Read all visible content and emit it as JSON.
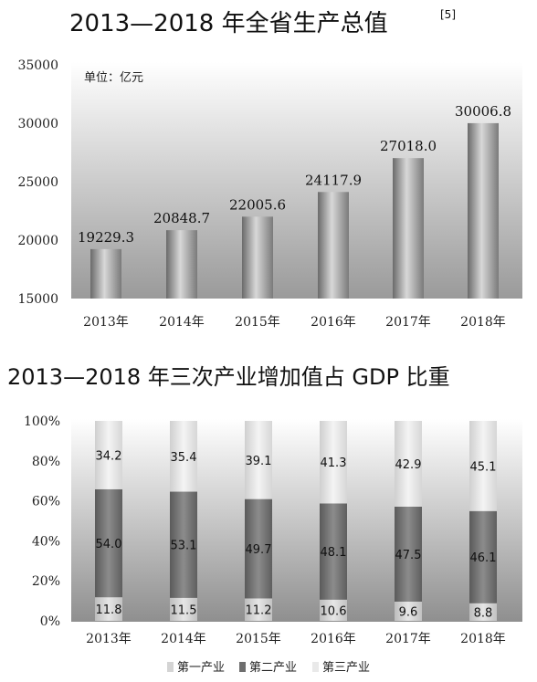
{
  "chart_data": [
    {
      "type": "bar",
      "title": "2013—2018 年全省生产总值",
      "title_sup": "[5]",
      "unit_label": "单位：亿元",
      "categories": [
        "2013年",
        "2014年",
        "2015年",
        "2016年",
        "2017年",
        "2018年"
      ],
      "values": [
        19229.3,
        20848.7,
        22005.6,
        24117.9,
        27018.0,
        30006.8
      ],
      "value_labels": [
        "19229.3",
        "20848.7",
        "22005.6",
        "24117.9",
        "27018.0",
        "30006.8"
      ],
      "ylim": [
        15000,
        35000
      ],
      "yticks": [
        "15000",
        "20000",
        "25000",
        "30000",
        "35000"
      ],
      "ytick_values": [
        15000,
        20000,
        25000,
        30000,
        35000
      ],
      "grid": false
    },
    {
      "type": "bar",
      "stacked": true,
      "title": "2013—2018 年三次产业增加值占 GDP 比重",
      "categories": [
        "2013年",
        "2014年",
        "2015年",
        "2016年",
        "2017年",
        "2018年"
      ],
      "series": [
        {
          "name": "第一产业",
          "values": [
            11.8,
            11.5,
            11.2,
            10.6,
            9.6,
            8.8
          ],
          "labels": [
            "11.8",
            "11.5",
            "11.2",
            "10.6",
            "9.6",
            "8.8"
          ],
          "color": "#d4d4d4"
        },
        {
          "name": "第二产业",
          "values": [
            54.0,
            53.1,
            49.7,
            48.1,
            47.5,
            46.1
          ],
          "labels": [
            "54.0",
            "53.1",
            "49.7",
            "48.1",
            "47.5",
            "46.1"
          ],
          "color": "#6e6e6e"
        },
        {
          "name": "第三产业",
          "values": [
            34.2,
            35.4,
            39.1,
            41.3,
            42.9,
            45.1
          ],
          "labels": [
            "34.2",
            "35.4",
            "39.1",
            "41.3",
            "42.9",
            "45.1"
          ],
          "color": "#e9e9e9"
        }
      ],
      "ylim": [
        0,
        100
      ],
      "yticks": [
        "0%",
        "20%",
        "40%",
        "60%",
        "80%",
        "100%"
      ],
      "ytick_values": [
        0,
        20,
        40,
        60,
        80,
        100
      ],
      "legend_position": "bottom",
      "grid": false
    }
  ]
}
